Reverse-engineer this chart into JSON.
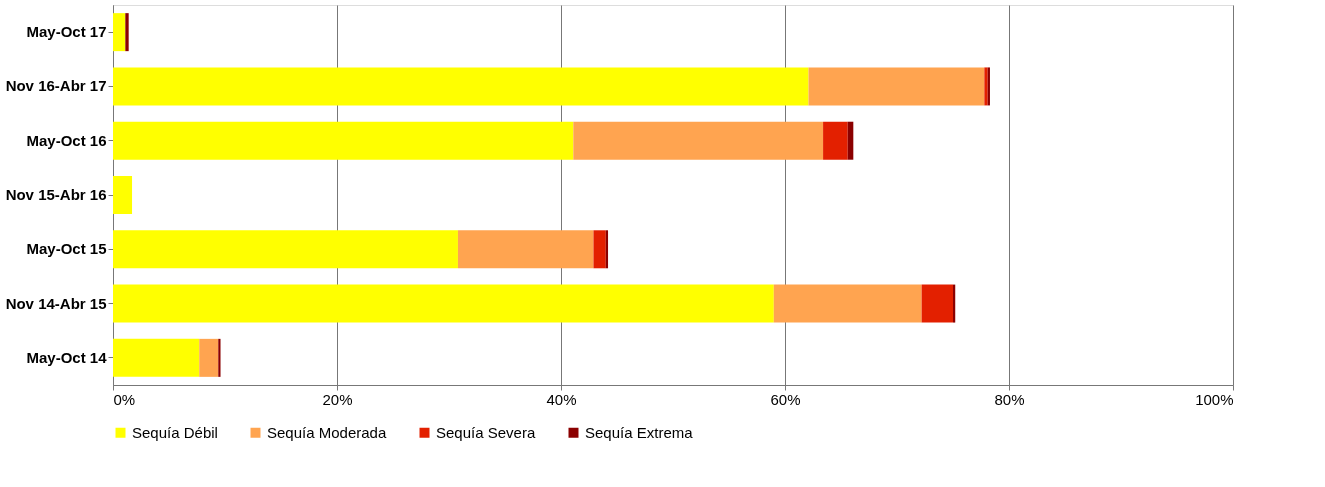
{
  "chart_data": {
    "type": "bar",
    "orientation": "horizontal",
    "stacked": true,
    "categories": [
      "May-Oct 17",
      "Nov 16-Abr 17",
      "May-Oct 16",
      "Nov 15-Abr 16",
      "May-Oct 15",
      "Nov 14-Abr 15",
      "May-Oct 14"
    ],
    "series": [
      {
        "name": "Sequía Débil",
        "color": "#ffff00",
        "values": [
          1.1,
          62.1,
          41.1,
          1.7,
          30.8,
          59.0,
          7.7
        ]
      },
      {
        "name": "Sequía Moderada",
        "color": "#ffa450",
        "values": [
          0,
          15.7,
          22.3,
          0,
          12.1,
          13.2,
          1.7
        ]
      },
      {
        "name": "Sequía Severa",
        "color": "#e32000",
        "values": [
          0,
          0.3,
          2.2,
          0,
          1.1,
          2.8,
          0
        ]
      },
      {
        "name": "Sequía Extrema",
        "color": "#8b0000",
        "values": [
          0.3,
          0.2,
          0.5,
          0,
          0.2,
          0.2,
          0.2
        ]
      }
    ],
    "xlim": [
      0,
      100
    ],
    "xticks": [
      {
        "value": 0,
        "label": "0%"
      },
      {
        "value": 20,
        "label": "20%"
      },
      {
        "value": 40,
        "label": "40%"
      },
      {
        "value": 60,
        "label": "60%"
      },
      {
        "value": 80,
        "label": "80%"
      },
      {
        "value": 100,
        "label": "100%"
      }
    ],
    "grid": "x",
    "legend": "bottom"
  }
}
